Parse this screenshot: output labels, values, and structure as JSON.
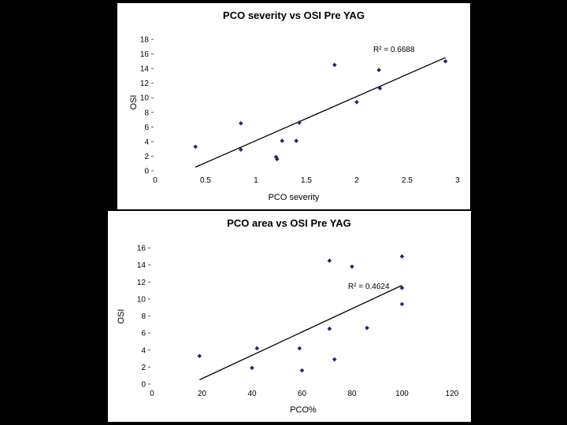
{
  "chart_data": [
    {
      "type": "scatter",
      "title": "PCO severity vs OSI Pre YAG",
      "xlabel": "PCO severity",
      "ylabel": "OSI",
      "xlim": [
        0,
        3
      ],
      "ylim": [
        0,
        18
      ],
      "xticks": [
        "0",
        "0.5",
        "1",
        "1.5",
        "2",
        "2.5",
        "3"
      ],
      "yticks": [
        "0",
        "2",
        "4",
        "6",
        "8",
        "10",
        "12",
        "14",
        "16",
        "18"
      ],
      "grid": false,
      "points": [
        {
          "x": 0.4,
          "y": 3.3
        },
        {
          "x": 0.85,
          "y": 6.5
        },
        {
          "x": 0.85,
          "y": 2.9
        },
        {
          "x": 1.2,
          "y": 1.9
        },
        {
          "x": 1.21,
          "y": 1.6
        },
        {
          "x": 1.26,
          "y": 4.1
        },
        {
          "x": 1.4,
          "y": 4.1
        },
        {
          "x": 1.43,
          "y": 6.6
        },
        {
          "x": 1.78,
          "y": 14.5
        },
        {
          "x": 2.0,
          "y": 9.4
        },
        {
          "x": 2.22,
          "y": 13.8
        },
        {
          "x": 2.23,
          "y": 11.3
        },
        {
          "x": 2.88,
          "y": 15.0
        }
      ],
      "trendline": {
        "x": [
          0.4,
          2.88
        ],
        "y": [
          0.5,
          15.5
        ]
      },
      "annotation": "R² = 0.6688"
    },
    {
      "type": "scatter",
      "title": "PCO area vs OSI Pre YAG",
      "xlabel": "PCO%",
      "ylabel": "OSI",
      "xlim": [
        0,
        120
      ],
      "ylim": [
        0,
        16
      ],
      "xticks": [
        "0",
        "20",
        "40",
        "60",
        "80",
        "100",
        "120"
      ],
      "yticks": [
        "0",
        "2",
        "4",
        "6",
        "8",
        "10",
        "12",
        "14",
        "16"
      ],
      "grid": false,
      "points": [
        {
          "x": 19,
          "y": 3.3
        },
        {
          "x": 40,
          "y": 1.9
        },
        {
          "x": 42,
          "y": 4.2
        },
        {
          "x": 59,
          "y": 4.2
        },
        {
          "x": 60,
          "y": 1.6
        },
        {
          "x": 71,
          "y": 14.5
        },
        {
          "x": 71,
          "y": 6.5
        },
        {
          "x": 73,
          "y": 2.9
        },
        {
          "x": 80,
          "y": 13.8
        },
        {
          "x": 86,
          "y": 6.6
        },
        {
          "x": 100,
          "y": 15.0
        },
        {
          "x": 100,
          "y": 11.3
        },
        {
          "x": 100,
          "y": 9.4
        }
      ],
      "trendline": {
        "x": [
          19,
          100
        ],
        "y": [
          0.5,
          11.6
        ]
      },
      "annotation": "R² = 0.4624"
    }
  ],
  "colors": {
    "point": "#1c2a6e",
    "line": "#000000",
    "background": "#000000",
    "panel": "#ffffff"
  }
}
